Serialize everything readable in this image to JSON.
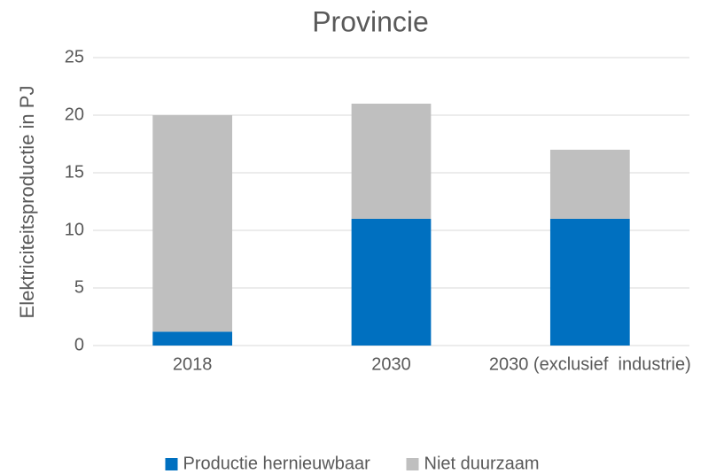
{
  "chart_data": {
    "type": "stacked_bar",
    "title": "Provincie",
    "y_label": "Elektriciteitsproductie in PJ",
    "categories": [
      "2018",
      "2030",
      "2030 (exclusief  industrie)"
    ],
    "series": [
      {
        "name": "Productie hernieuwbaar",
        "color": "#0070c0",
        "values": [
          1.2,
          11,
          11
        ]
      },
      {
        "name": "Niet duurzaam",
        "color": "#bfbfbf",
        "values": [
          18.8,
          10,
          6
        ]
      }
    ],
    "ylim": [
      0,
      25
    ],
    "yticks": [
      0,
      5,
      10,
      15,
      20,
      25
    ],
    "grid": true,
    "legend": "bottom"
  }
}
